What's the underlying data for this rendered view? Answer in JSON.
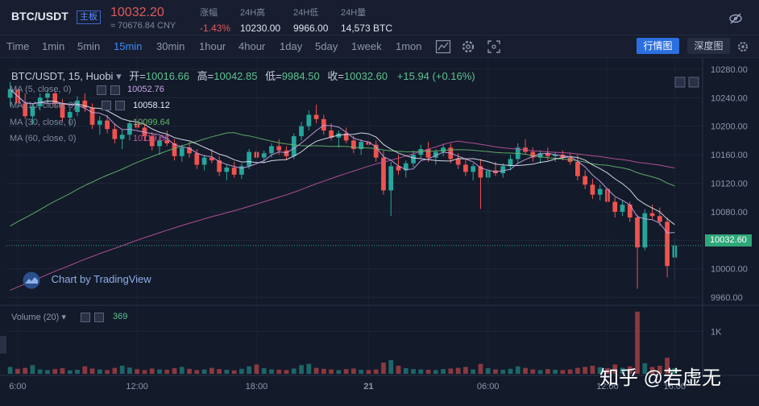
{
  "header": {
    "pair": "BTC/USDT",
    "badge": "主板",
    "price": "10032.20",
    "cny": "≈ 70676.84 CNY",
    "stats": [
      {
        "label": "涨幅",
        "value": "-1.43%",
        "color": "red"
      },
      {
        "label": "24H高",
        "value": "10230.00",
        "color": "white"
      },
      {
        "label": "24H低",
        "value": "9966.00",
        "color": "white"
      },
      {
        "label": "24H量",
        "value": "14,573 BTC",
        "color": "white"
      }
    ],
    "right_icon": "eye-off-icon"
  },
  "toolbar": {
    "timeframes": [
      "Time",
      "1min",
      "5min",
      "15min",
      "30min",
      "1hour",
      "4hour",
      "1day",
      "5day",
      "1week",
      "1mon"
    ],
    "active_timeframe": "15min",
    "icons": [
      "indicator-icon",
      "settings-icon",
      "fullscreen-icon"
    ],
    "main_button": "行情图",
    "depth_button": "深度图",
    "gear_icon": "gear-icon"
  },
  "legend": {
    "title": "BTC/USDT, 15, Huobi",
    "open_label": "开=",
    "open": "10016.66",
    "high_label": "高=",
    "high": "10042.85",
    "low_label": "低=",
    "low": "9984.50",
    "close_label": "收=",
    "close": "10032.60",
    "change": "+15.94 (+0.16%)"
  },
  "ma": [
    {
      "label": "MA (5, close, 0)",
      "value": "10052.76",
      "color": "#c9a6e8"
    },
    {
      "label": "MA (10, close, 0)",
      "value": "10058.12",
      "color": "#e6eaf5"
    },
    {
      "label": "MA (30, close, 0)",
      "value": "10099.64",
      "color": "#66b86a"
    },
    {
      "label": "MA (60, close, 0)",
      "value": "10119.88",
      "color": "#c154a0"
    }
  ],
  "watermark_logo": "Chart by TradingView",
  "last_price_label": "10032.60",
  "volume": {
    "label": "Volume (20)",
    "value": "369",
    "axis_label": "1K"
  },
  "watermark": "知乎 @若虚无",
  "colors": {
    "up": "#26a69a",
    "down": "#ef5350",
    "bg": "#121828"
  },
  "chart_data": {
    "type": "candlestick",
    "y_ticks": [
      "10280.00",
      "10240.00",
      "10200.00",
      "10160.00",
      "10120.00",
      "10080.00",
      "10040.00",
      "10000.00",
      "9960.00"
    ],
    "x_ticks": [
      "6:00",
      "12:00",
      "18:00",
      "21",
      "06:00",
      "12:00",
      "16:00"
    ],
    "ylim": [
      9950,
      10290
    ],
    "candles": [
      [
        10240,
        10262,
        10228,
        10252
      ],
      [
        10252,
        10256,
        10225,
        10232
      ],
      [
        10232,
        10246,
        10210,
        10214
      ],
      [
        10214,
        10232,
        10202,
        10228
      ],
      [
        10228,
        10246,
        10222,
        10240
      ],
      [
        10240,
        10252,
        10232,
        10246
      ],
      [
        10246,
        10250,
        10226,
        10232
      ],
      [
        10232,
        10238,
        10206,
        10212
      ],
      [
        10212,
        10226,
        10200,
        10220
      ],
      [
        10220,
        10242,
        10214,
        10236
      ],
      [
        10236,
        10246,
        10220,
        10226
      ],
      [
        10226,
        10232,
        10196,
        10202
      ],
      [
        10202,
        10214,
        10188,
        10208
      ],
      [
        10208,
        10216,
        10190,
        10196
      ],
      [
        10196,
        10204,
        10176,
        10182
      ],
      [
        10182,
        10196,
        10168,
        10188
      ],
      [
        10188,
        10208,
        10180,
        10204
      ],
      [
        10204,
        10216,
        10194,
        10198
      ],
      [
        10198,
        10204,
        10180,
        10186
      ],
      [
        10186,
        10192,
        10166,
        10172
      ],
      [
        10172,
        10186,
        10160,
        10180
      ],
      [
        10180,
        10194,
        10172,
        10176
      ],
      [
        10176,
        10182,
        10152,
        10158
      ],
      [
        10158,
        10174,
        10150,
        10170
      ],
      [
        10170,
        10178,
        10156,
        10162
      ],
      [
        10162,
        10168,
        10140,
        10146
      ],
      [
        10146,
        10160,
        10138,
        10156
      ],
      [
        10156,
        10168,
        10148,
        10152
      ],
      [
        10152,
        10158,
        10130,
        10136
      ],
      [
        10136,
        10146,
        10124,
        10142
      ],
      [
        10142,
        10150,
        10128,
        10132
      ],
      [
        10132,
        10148,
        10126,
        10144
      ],
      [
        10144,
        10168,
        10140,
        10164
      ],
      [
        10164,
        10172,
        10150,
        10156
      ],
      [
        10156,
        10166,
        10148,
        10162
      ],
      [
        10162,
        10176,
        10156,
        10172
      ],
      [
        10172,
        10182,
        10160,
        10166
      ],
      [
        10166,
        10172,
        10152,
        10158
      ],
      [
        10158,
        10190,
        10154,
        10186
      ],
      [
        10186,
        10206,
        10180,
        10200
      ],
      [
        10200,
        10222,
        10194,
        10216
      ],
      [
        10216,
        10230,
        10204,
        10210
      ],
      [
        10210,
        10216,
        10188,
        10194
      ],
      [
        10194,
        10204,
        10180,
        10184
      ],
      [
        10184,
        10194,
        10170,
        10190
      ],
      [
        10190,
        10198,
        10176,
        10180
      ],
      [
        10180,
        10186,
        10162,
        10168
      ],
      [
        10168,
        10182,
        10160,
        10178
      ],
      [
        10178,
        10190,
        10170,
        10174
      ],
      [
        10174,
        10180,
        10150,
        10156
      ],
      [
        10156,
        10166,
        10104,
        10110
      ],
      [
        10110,
        10150,
        10074,
        10144
      ],
      [
        10144,
        10160,
        10132,
        10138
      ],
      [
        10138,
        10152,
        10128,
        10148
      ],
      [
        10148,
        10166,
        10142,
        10160
      ],
      [
        10160,
        10174,
        10154,
        10168
      ],
      [
        10168,
        10178,
        10150,
        10156
      ],
      [
        10156,
        10168,
        10146,
        10164
      ],
      [
        10164,
        10176,
        10158,
        10170
      ],
      [
        10170,
        10176,
        10148,
        10154
      ],
      [
        10154,
        10162,
        10140,
        10146
      ],
      [
        10146,
        10156,
        10130,
        10136
      ],
      [
        10136,
        10148,
        10124,
        10144
      ],
      [
        10144,
        10154,
        10084,
        10128
      ],
      [
        10128,
        10142,
        10120,
        10138
      ],
      [
        10138,
        10150,
        10130,
        10134
      ],
      [
        10134,
        10148,
        10128,
        10144
      ],
      [
        10144,
        10160,
        10138,
        10154
      ],
      [
        10154,
        10176,
        10148,
        10170
      ],
      [
        10170,
        10182,
        10160,
        10164
      ],
      [
        10164,
        10170,
        10150,
        10156
      ],
      [
        10156,
        10166,
        10148,
        10162
      ],
      [
        10162,
        10170,
        10152,
        10158
      ],
      [
        10158,
        10164,
        10150,
        10160
      ],
      [
        10160,
        10166,
        10152,
        10156
      ],
      [
        10156,
        10162,
        10146,
        10150
      ],
      [
        10150,
        10160,
        10124,
        10130
      ],
      [
        10130,
        10138,
        10112,
        10118
      ],
      [
        10118,
        10126,
        10098,
        10104
      ],
      [
        10104,
        10118,
        10096,
        10112
      ],
      [
        10112,
        10116,
        10088,
        10094
      ],
      [
        10094,
        10100,
        10072,
        10080
      ],
      [
        10080,
        10096,
        10074,
        10090
      ],
      [
        10090,
        10094,
        10066,
        10072
      ],
      [
        10072,
        10076,
        9972,
        10030
      ],
      [
        10030,
        10084,
        10026,
        10078
      ],
      [
        10078,
        10090,
        10070,
        10074
      ],
      [
        10074,
        10086,
        10060,
        10066
      ],
      [
        10066,
        10072,
        9988,
        10004
      ],
      [
        10016,
        10043,
        9984,
        10033
      ]
    ],
    "volume": [
      110,
      80,
      95,
      140,
      70,
      60,
      75,
      90,
      55,
      65,
      120,
      85,
      70,
      60,
      95,
      130,
      100,
      75,
      60,
      85,
      70,
      65,
      90,
      110,
      80,
      60,
      70,
      95,
      75,
      65,
      55,
      80,
      120,
      150,
      90,
      70,
      65,
      60,
      85,
      140,
      160,
      95,
      80,
      70,
      60,
      75,
      85,
      65,
      60,
      70,
      180,
      220,
      130,
      90,
      75,
      70,
      65,
      60,
      75,
      85,
      95,
      110,
      70,
      160,
      90,
      70,
      65,
      80,
      120,
      95,
      70,
      60,
      75,
      65,
      60,
      70,
      95,
      110,
      130,
      105,
      90,
      150,
      95,
      120,
      1000,
      170,
      110,
      130,
      260,
      90
    ]
  }
}
